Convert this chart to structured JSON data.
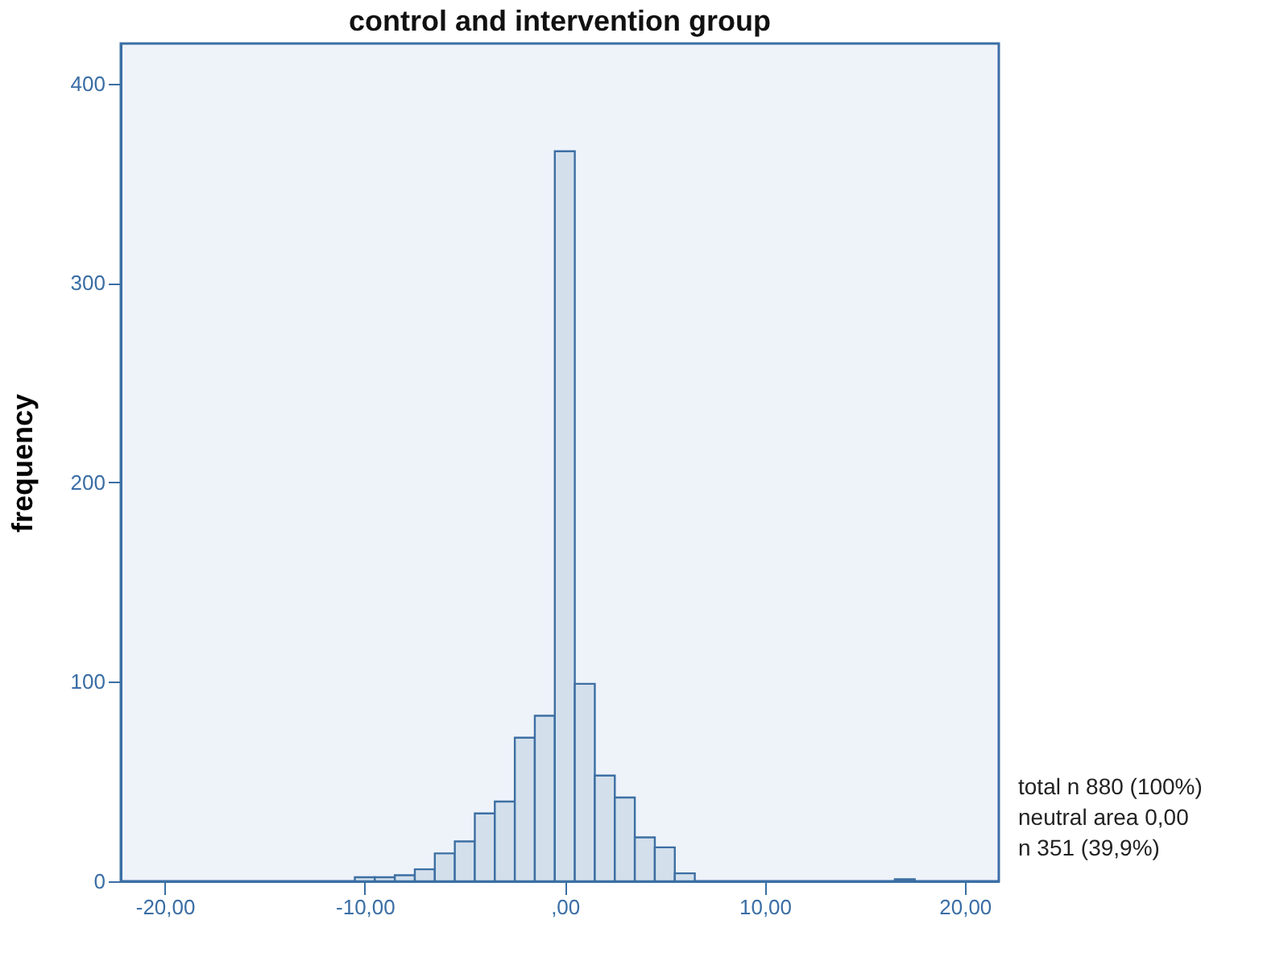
{
  "chart_data": {
    "type": "histogram",
    "title": "control and intervention group",
    "ylabel": "frequency",
    "bins": [
      -10.5,
      -9.5,
      -8.5,
      -7.5,
      -6.5,
      -5.5,
      -4.5,
      -3.5,
      -2.5,
      -1.5,
      -0.5,
      0.5,
      1.5,
      2.5,
      3.5,
      4.5,
      5.5,
      6.5,
      7.5,
      8.5,
      9.5,
      10.5,
      11.5,
      12.5,
      13.5,
      14.5,
      15.5,
      16.5,
      17.5
    ],
    "values": [
      2,
      2,
      3,
      6,
      14,
      20,
      34,
      40,
      72,
      83,
      366,
      99,
      53,
      42,
      22,
      17,
      4,
      0,
      0,
      0,
      0,
      0,
      0,
      0,
      0,
      0,
      0,
      1
    ],
    "color": "#d3e0ec",
    "xlim": [
      -22.2,
      21.7
    ],
    "ylim": [
      0,
      420
    ],
    "xticks": [
      {
        "value": -20,
        "label": "-20,00"
      },
      {
        "value": -10,
        "label": "-10,00"
      },
      {
        "value": 0,
        "label": ",00"
      },
      {
        "value": 10,
        "label": "10,00"
      },
      {
        "value": 20,
        "label": "20,00"
      }
    ],
    "yticks": [
      0,
      100,
      200,
      300,
      400
    ],
    "annotations": [
      "total n 880 (100%)",
      "neutral area 0,00",
      "n 351 (39,9%)"
    ]
  }
}
